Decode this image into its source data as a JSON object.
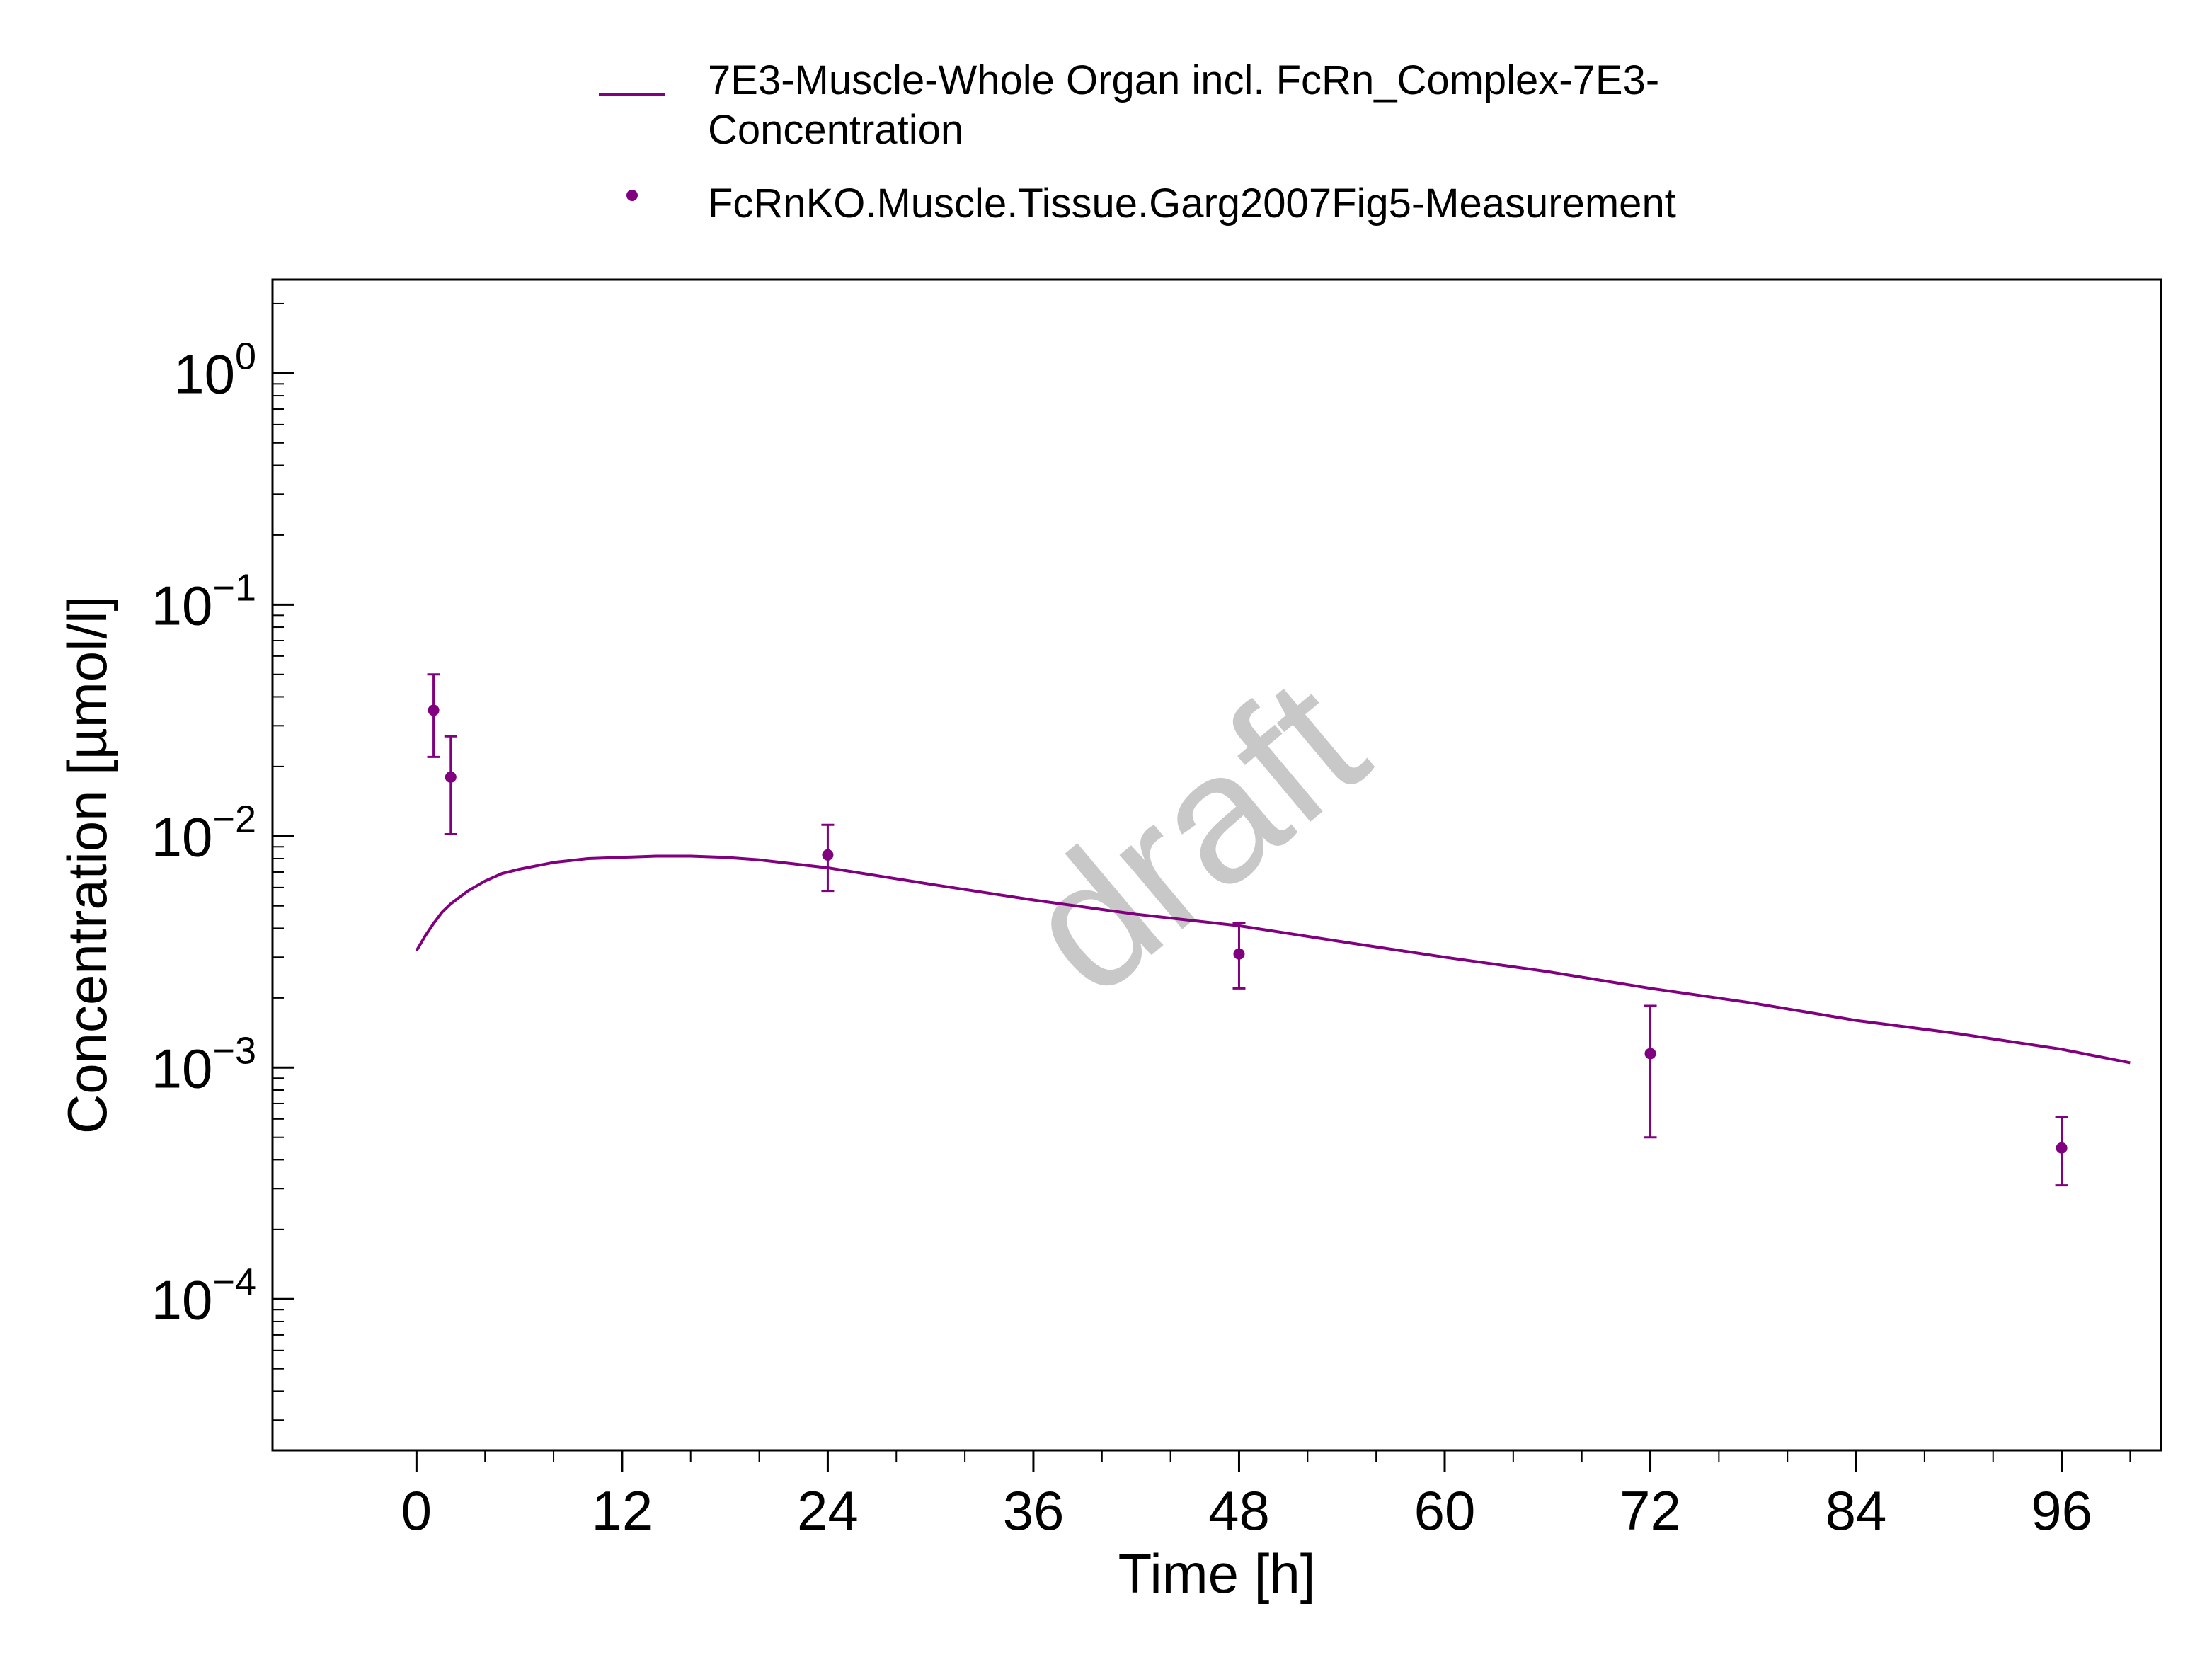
{
  "chart_data": {
    "type": "line",
    "title": "",
    "xlabel": "Time [h]",
    "ylabel": "Concentration [µmol/l]",
    "xlim": [
      -8.4,
      101.8
    ],
    "ylim": [
      2.22e-05,
      2.54
    ],
    "yscale": "log",
    "x_ticks": [
      0,
      12,
      24,
      36,
      48,
      60,
      72,
      84,
      96
    ],
    "x_tick_labels": [
      "0",
      "12",
      "24",
      "36",
      "48",
      "60",
      "72",
      "84",
      "96"
    ],
    "y_ticks": [
      1,
      0.1,
      0.01,
      0.001,
      0.0001
    ],
    "y_tick_labels": [
      {
        "base": "10",
        "exp": "0"
      },
      {
        "base": "10",
        "exp": "−1"
      },
      {
        "base": "10",
        "exp": "−2"
      },
      {
        "base": "10",
        "exp": "−3"
      },
      {
        "base": "10",
        "exp": "−4"
      }
    ],
    "grid": false,
    "legend_position": "top",
    "watermark": "draft",
    "series": [
      {
        "name": "7E3-Muscle-Whole Organ incl. FcRn_Complex-7E3-Concentration",
        "legend_lines": [
          "7E3-Muscle-Whole Organ incl. FcRn_Complex-7E3-",
          "Concentration"
        ],
        "kind": "line",
        "color": "#800080",
        "x": [
          0,
          0.5,
          1,
          1.5,
          2,
          3,
          4,
          5,
          6,
          8,
          10,
          12,
          14,
          16,
          18,
          20,
          24,
          30,
          36,
          42,
          48,
          54,
          60,
          66,
          72,
          78,
          84,
          90,
          96,
          100
        ],
        "y": [
          0.0032,
          0.0037,
          0.0042,
          0.0047,
          0.0051,
          0.0058,
          0.0064,
          0.0069,
          0.0072,
          0.0077,
          0.008,
          0.0081,
          0.0082,
          0.0082,
          0.0081,
          0.0079,
          0.0073,
          0.0062,
          0.0053,
          0.0046,
          0.0041,
          0.0035,
          0.003,
          0.0026,
          0.0022,
          0.0019,
          0.0016,
          0.0014,
          0.0012,
          0.00105
        ]
      },
      {
        "name": "FcRnKO.Muscle.Tissue.Garg2007Fig5-Measurement",
        "kind": "scatter",
        "color": "#800080",
        "points": [
          {
            "x": 1,
            "y": 0.035,
            "y_low": 0.022,
            "y_high": 0.05
          },
          {
            "x": 2,
            "y": 0.018,
            "y_low": 0.0102,
            "y_high": 0.027
          },
          {
            "x": 24,
            "y": 0.0083,
            "y_low": 0.0058,
            "y_high": 0.0112
          },
          {
            "x": 48,
            "y": 0.0031,
            "y_low": 0.0022,
            "y_high": 0.0042
          },
          {
            "x": 72,
            "y": 0.00115,
            "y_low": 0.0005,
            "y_high": 0.00185
          },
          {
            "x": 96,
            "y": 0.00045,
            "y_low": 0.00031,
            "y_high": 0.00061
          }
        ]
      }
    ]
  }
}
